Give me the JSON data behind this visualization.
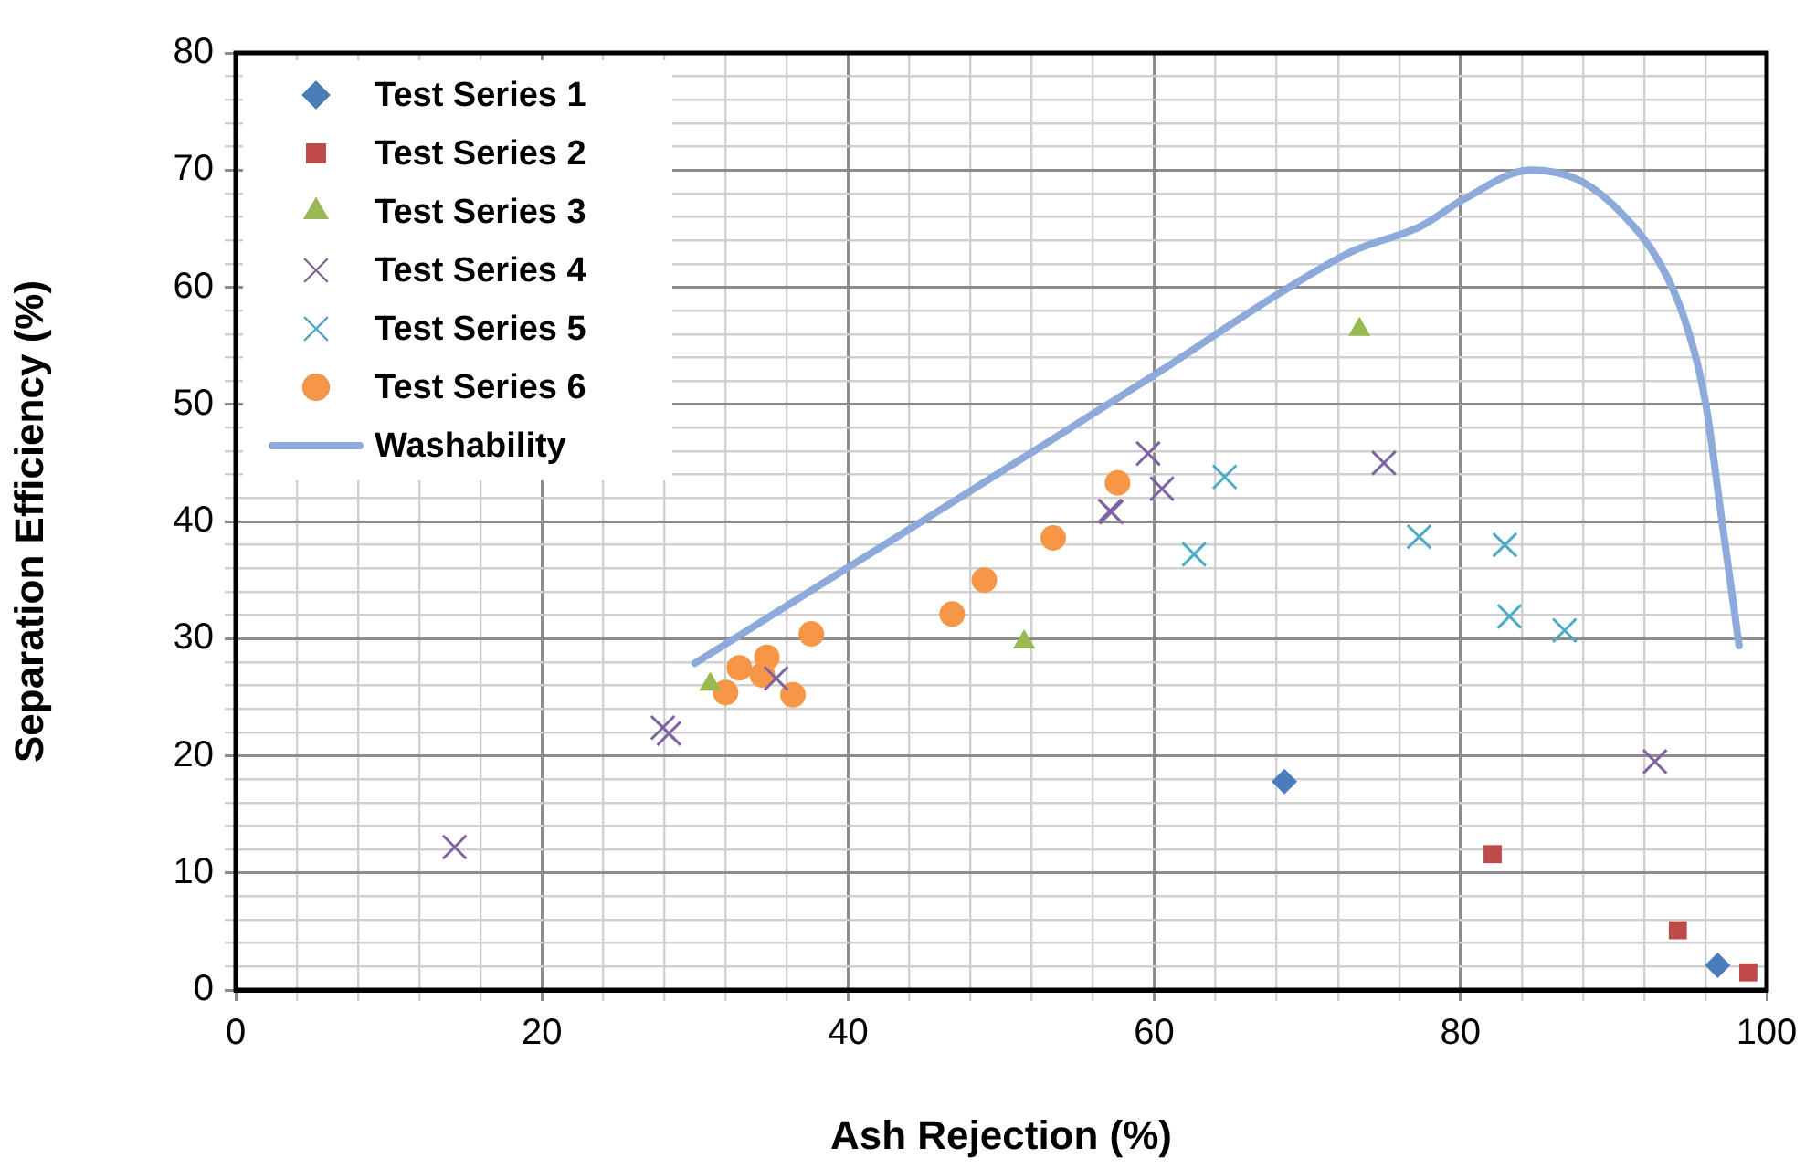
{
  "chart_data": {
    "type": "scatter",
    "xlabel": "Ash Rejection (%)",
    "ylabel": "Separation Efficiency (%)",
    "xlim": [
      0,
      100
    ],
    "ylim": [
      0,
      80
    ],
    "xticks": [
      0,
      {
        "value": 4,
        "label": null
      },
      {
        "value": 8,
        "label": null
      },
      {
        "value": 12,
        "label": null
      },
      {
        "value": 16,
        "label": null
      },
      20,
      {
        "value": 24,
        "label": null
      },
      {
        "value": 28,
        "label": null
      },
      {
        "value": 32,
        "label": null
      },
      {
        "value": 36,
        "label": null
      },
      40,
      {
        "value": 44,
        "label": null
      },
      {
        "value": 48,
        "label": null
      },
      {
        "value": 52,
        "label": null
      },
      {
        "value": 56,
        "label": null
      },
      60,
      {
        "value": 64,
        "label": null
      },
      {
        "value": 68,
        "label": null
      },
      {
        "value": 72,
        "label": null
      },
      {
        "value": 76,
        "label": null
      },
      80,
      {
        "value": 84,
        "label": null
      },
      {
        "value": 88,
        "label": null
      },
      {
        "value": 92,
        "label": null
      },
      {
        "value": 96,
        "label": null
      },
      100
    ],
    "yticks": [
      0,
      {
        "value": 2,
        "label": null
      },
      {
        "value": 4,
        "label": null
      },
      {
        "value": 6,
        "label": null
      },
      {
        "value": 8,
        "label": null
      },
      10,
      {
        "value": 12,
        "label": null
      },
      {
        "value": 14,
        "label": null
      },
      {
        "value": 16,
        "label": null
      },
      {
        "value": 18,
        "label": null
      },
      20,
      {
        "value": 22,
        "label": null
      },
      {
        "value": 24,
        "label": null
      },
      {
        "value": 26,
        "label": null
      },
      {
        "value": 28,
        "label": null
      },
      30,
      {
        "value": 32,
        "label": null
      },
      {
        "value": 34,
        "label": null
      },
      {
        "value": 36,
        "label": null
      },
      {
        "value": 38,
        "label": null
      },
      40,
      {
        "value": 42,
        "label": null
      },
      {
        "value": 44,
        "label": null
      },
      {
        "value": 46,
        "label": null
      },
      {
        "value": 48,
        "label": null
      },
      50,
      {
        "value": 52,
        "label": null
      },
      {
        "value": 54,
        "label": null
      },
      {
        "value": 56,
        "label": null
      },
      {
        "value": 58,
        "label": null
      },
      60,
      {
        "value": 62,
        "label": null
      },
      {
        "value": 64,
        "label": null
      },
      {
        "value": 66,
        "label": null
      },
      {
        "value": 68,
        "label": null
      },
      70,
      {
        "value": 72,
        "label": null
      },
      {
        "value": 74,
        "label": null
      },
      {
        "value": 76,
        "label": null
      },
      {
        "value": 78,
        "label": null
      },
      80
    ],
    "grid": true,
    "legend": "top left",
    "series": [
      {
        "name": "Test Series 1",
        "type": "scatter",
        "marker": "diamond",
        "color": "#4a7ebb",
        "x": [
          68.5,
          96.8
        ],
        "values": [
          17.8,
          2.1
        ]
      },
      {
        "name": "Test Series 2",
        "type": "scatter",
        "marker": "square",
        "color": "#be4b48",
        "x": [
          82.1,
          94.2,
          98.8
        ],
        "values": [
          11.6,
          5.1,
          1.5
        ]
      },
      {
        "name": "Test Series 3",
        "type": "scatter",
        "marker": "triangle",
        "color": "#98b954",
        "x": [
          31.0,
          51.5,
          73.4
        ],
        "values": [
          26.1,
          29.7,
          56.4
        ]
      },
      {
        "name": "Test Series 4",
        "type": "scatter",
        "marker": "cross",
        "color": "#8064a2",
        "x": [
          14.3,
          27.9,
          28.3,
          35.3,
          57.2,
          57.1,
          59.6,
          60.5,
          75.0,
          92.7
        ],
        "values": [
          12.2,
          22.4,
          21.9,
          26.6,
          40.8,
          40.9,
          45.8,
          42.8,
          45.0,
          19.5
        ]
      },
      {
        "name": "Test Series 5",
        "type": "scatter",
        "marker": "cross",
        "color": "#4bacc6",
        "x": [
          62.6,
          64.6,
          77.3,
          82.9,
          83.2,
          86.8
        ],
        "values": [
          37.2,
          43.8,
          38.7,
          38.0,
          31.9,
          30.7
        ]
      },
      {
        "name": "Test Series 6",
        "type": "scatter",
        "marker": "circle",
        "color": "#f79646",
        "x": [
          32.0,
          32.9,
          34.4,
          34.7,
          36.4,
          37.6,
          46.8,
          48.9,
          53.4,
          57.6
        ],
        "values": [
          25.4,
          27.5,
          26.9,
          28.4,
          25.2,
          30.4,
          32.1,
          35.0,
          38.6,
          43.3
        ]
      },
      {
        "name": "Washability",
        "type": "line",
        "marker": "none",
        "color": "#8eaadb",
        "x": [
          30.0,
          44.2,
          52.0,
          60.0,
          68.2,
          73.0,
          77.4,
          80.2,
          84.6,
          87.8,
          90.6,
          93.0,
          94.6,
          96.0,
          97.0,
          98.2
        ],
        "values": [
          27.9,
          39.5,
          45.9,
          52.5,
          59.5,
          63.1,
          65.2,
          67.5,
          70.0,
          69.1,
          66.2,
          62.1,
          57.4,
          50.2,
          40.8,
          29.4
        ]
      }
    ]
  }
}
